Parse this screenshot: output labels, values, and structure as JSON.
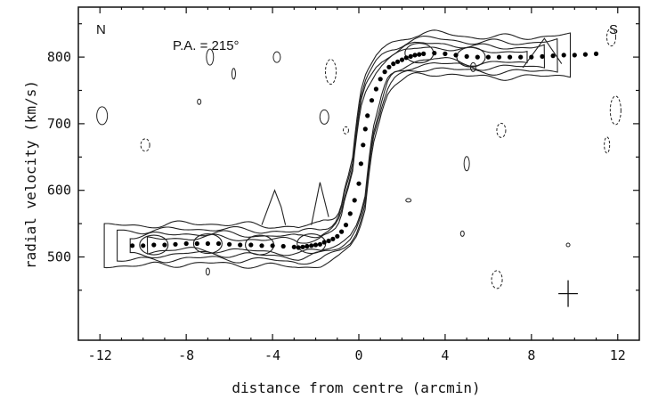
{
  "chart_data": {
    "type": "scatter",
    "xlabel": "distance from centre (arcmin)",
    "ylabel": "radial velocity (km/s)",
    "xlim": [
      -13,
      13
    ],
    "ylim": [
      375,
      875
    ],
    "xticks": [
      -12,
      -8,
      -4,
      0,
      4,
      8,
      12
    ],
    "yticks": [
      500,
      600,
      700,
      800
    ],
    "grid": false,
    "annotations": {
      "left": "N",
      "right": "S",
      "pa": "P.A. = 215°"
    },
    "series": [
      {
        "x": [
          -10.5,
          -10.0,
          -9.5,
          -9.0,
          -8.5,
          -8.0,
          -7.5,
          -7.0,
          -6.5,
          -6.0,
          -5.5,
          -5.0,
          -4.5,
          -4.0,
          -3.5,
          -3.0,
          -2.8,
          -2.6,
          -2.4,
          -2.2,
          -2.0,
          -1.8,
          -1.6,
          -1.4,
          -1.2,
          -1.0,
          -0.8,
          -0.6,
          -0.4,
          -0.2,
          0.0,
          0.1,
          0.2,
          0.3,
          0.4,
          0.6,
          0.8,
          1.0,
          1.2,
          1.4,
          1.6,
          1.8,
          2.0,
          2.2,
          2.4,
          2.6,
          2.8,
          3.0,
          3.5,
          4.0,
          4.5,
          5.0,
          5.5,
          6.0,
          6.5,
          7.0,
          7.5,
          8.0,
          8.5,
          9.0,
          9.5,
          10.0,
          10.5,
          11.0
        ],
        "y": [
          517,
          517,
          518,
          518,
          519,
          520,
          520,
          520,
          520,
          519,
          518,
          518,
          517,
          517,
          516,
          515,
          514,
          515,
          516,
          517,
          518,
          519,
          522,
          524,
          527,
          531,
          538,
          548,
          565,
          585,
          610,
          640,
          668,
          692,
          712,
          735,
          752,
          767,
          778,
          785,
          790,
          793,
          796,
          799,
          801,
          803,
          804,
          805,
          806,
          805,
          803,
          801,
          800,
          800,
          800,
          800,
          800,
          800,
          801,
          802,
          803,
          803,
          804,
          805
        ]
      }
    ],
    "error_bar": {
      "x": 9.7,
      "y": 445,
      "xerr": 0.45,
      "yerr": 20
    }
  }
}
